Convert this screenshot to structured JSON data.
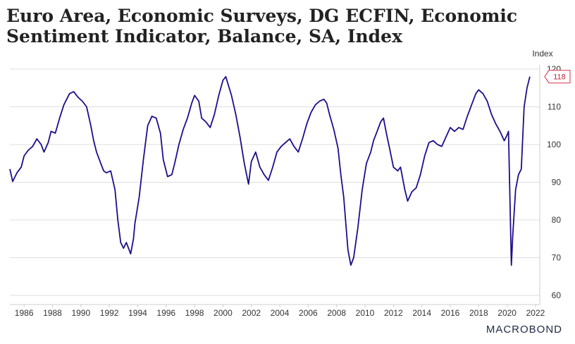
{
  "title": "Euro Area, Economic Surveys, DG ECFIN, Economic Sentiment Indicator, Balance, SA, Index",
  "brand": "MACROBOND",
  "chart_data": {
    "type": "line",
    "title": "Euro Area, Economic Surveys, DG ECFIN, Economic Sentiment Indicator, Balance, SA, Index",
    "ylabel": "Index",
    "xlabel": "",
    "ylim": [
      58,
      120
    ],
    "xlim": [
      1985.0,
      2022.3
    ],
    "y_ticks": [
      60,
      70,
      80,
      90,
      100,
      110,
      120
    ],
    "x_ticks": [
      1986,
      1988,
      1990,
      1992,
      1994,
      1996,
      1998,
      2000,
      2002,
      2004,
      2006,
      2008,
      2010,
      2012,
      2014,
      2016,
      2018,
      2020,
      2022
    ],
    "grid": "horizontal",
    "color": "#1a0f8c",
    "last_value_label": "118",
    "x": [
      1985.0,
      1985.2,
      1985.5,
      1985.8,
      1986.0,
      1986.3,
      1986.6,
      1986.9,
      1987.2,
      1987.4,
      1987.7,
      1987.9,
      1988.2,
      1988.5,
      1988.8,
      1989.0,
      1989.2,
      1989.5,
      1989.8,
      1990.1,
      1990.4,
      1990.7,
      1990.9,
      1991.1,
      1991.4,
      1991.6,
      1991.8,
      1992.1,
      1992.4,
      1992.6,
      1992.8,
      1993.0,
      1993.2,
      1993.5,
      1993.7,
      1993.8,
      1994.1,
      1994.4,
      1994.7,
      1995.0,
      1995.3,
      1995.6,
      1995.8,
      1996.1,
      1996.4,
      1996.6,
      1996.9,
      1997.2,
      1997.5,
      1997.8,
      1998.0,
      1998.3,
      1998.5,
      1998.8,
      1999.1,
      1999.4,
      1999.7,
      2000.0,
      2000.2,
      2000.4,
      2000.6,
      2000.9,
      2001.2,
      2001.5,
      2001.8,
      2002.0,
      2002.3,
      2002.6,
      2002.9,
      2003.2,
      2003.5,
      2003.8,
      2004.1,
      2004.4,
      2004.7,
      2005.0,
      2005.3,
      2005.6,
      2005.9,
      2006.2,
      2006.5,
      2006.8,
      2007.1,
      2007.3,
      2007.5,
      2007.8,
      2008.1,
      2008.3,
      2008.5,
      2008.8,
      2009.0,
      2009.2,
      2009.5,
      2009.8,
      2010.1,
      2010.4,
      2010.6,
      2010.8,
      2011.1,
      2011.3,
      2011.5,
      2011.7,
      2012.0,
      2012.3,
      2012.5,
      2012.8,
      2013.0,
      2013.3,
      2013.6,
      2013.9,
      2014.2,
      2014.5,
      2014.8,
      2015.1,
      2015.4,
      2015.7,
      2016.0,
      2016.3,
      2016.6,
      2016.9,
      2017.2,
      2017.5,
      2017.8,
      2018.0,
      2018.3,
      2018.6,
      2018.9,
      2019.2,
      2019.5,
      2019.8,
      2020.0,
      2020.1,
      2020.3,
      2020.4,
      2020.6,
      2020.8,
      2021.0,
      2021.2,
      2021.4,
      2021.6
    ],
    "series": [
      {
        "values": [
          93.5,
          90.2,
          92.5,
          94.0,
          97.0,
          98.5,
          99.5,
          101.5,
          100.0,
          98.0,
          100.5,
          103.5,
          103.0,
          107.0,
          110.5,
          112.0,
          113.5,
          114.0,
          112.5,
          111.5,
          110.0,
          105.0,
          101.0,
          98.0,
          95.0,
          93.0,
          92.5,
          93.0,
          88.0,
          80.0,
          74.0,
          72.5,
          74.0,
          71.0,
          75.0,
          79.0,
          86.0,
          96.0,
          105.0,
          107.5,
          107.0,
          103.0,
          96.0,
          91.5,
          92.0,
          95.0,
          100.0,
          104.0,
          107.0,
          111.0,
          113.0,
          111.5,
          107.0,
          106.0,
          104.5,
          108.0,
          113.0,
          117.0,
          118.0,
          115.5,
          113.0,
          108.0,
          102.0,
          95.0,
          89.5,
          95.5,
          98.0,
          94.0,
          92.0,
          90.5,
          94.0,
          98.0,
          99.5,
          100.5,
          101.5,
          99.5,
          98.0,
          101.5,
          105.5,
          108.5,
          110.5,
          111.5,
          112.0,
          111.0,
          108.0,
          104.0,
          99.0,
          92.0,
          86.0,
          72.0,
          68.0,
          70.0,
          78.0,
          88.0,
          95.0,
          98.0,
          101.0,
          103.0,
          106.0,
          107.0,
          103.0,
          99.5,
          94.0,
          93.0,
          94.0,
          88.0,
          85.0,
          87.5,
          88.5,
          92.0,
          97.0,
          100.5,
          101.0,
          100.0,
          99.5,
          102.0,
          104.5,
          103.5,
          104.5,
          104.0,
          107.5,
          110.5,
          113.5,
          114.5,
          113.5,
          111.5,
          108.0,
          105.5,
          103.5,
          101.0,
          102.5,
          103.5,
          68.0,
          76.0,
          88.0,
          92.0,
          93.5,
          110.0,
          115.0,
          118.0
        ]
      }
    ]
  }
}
